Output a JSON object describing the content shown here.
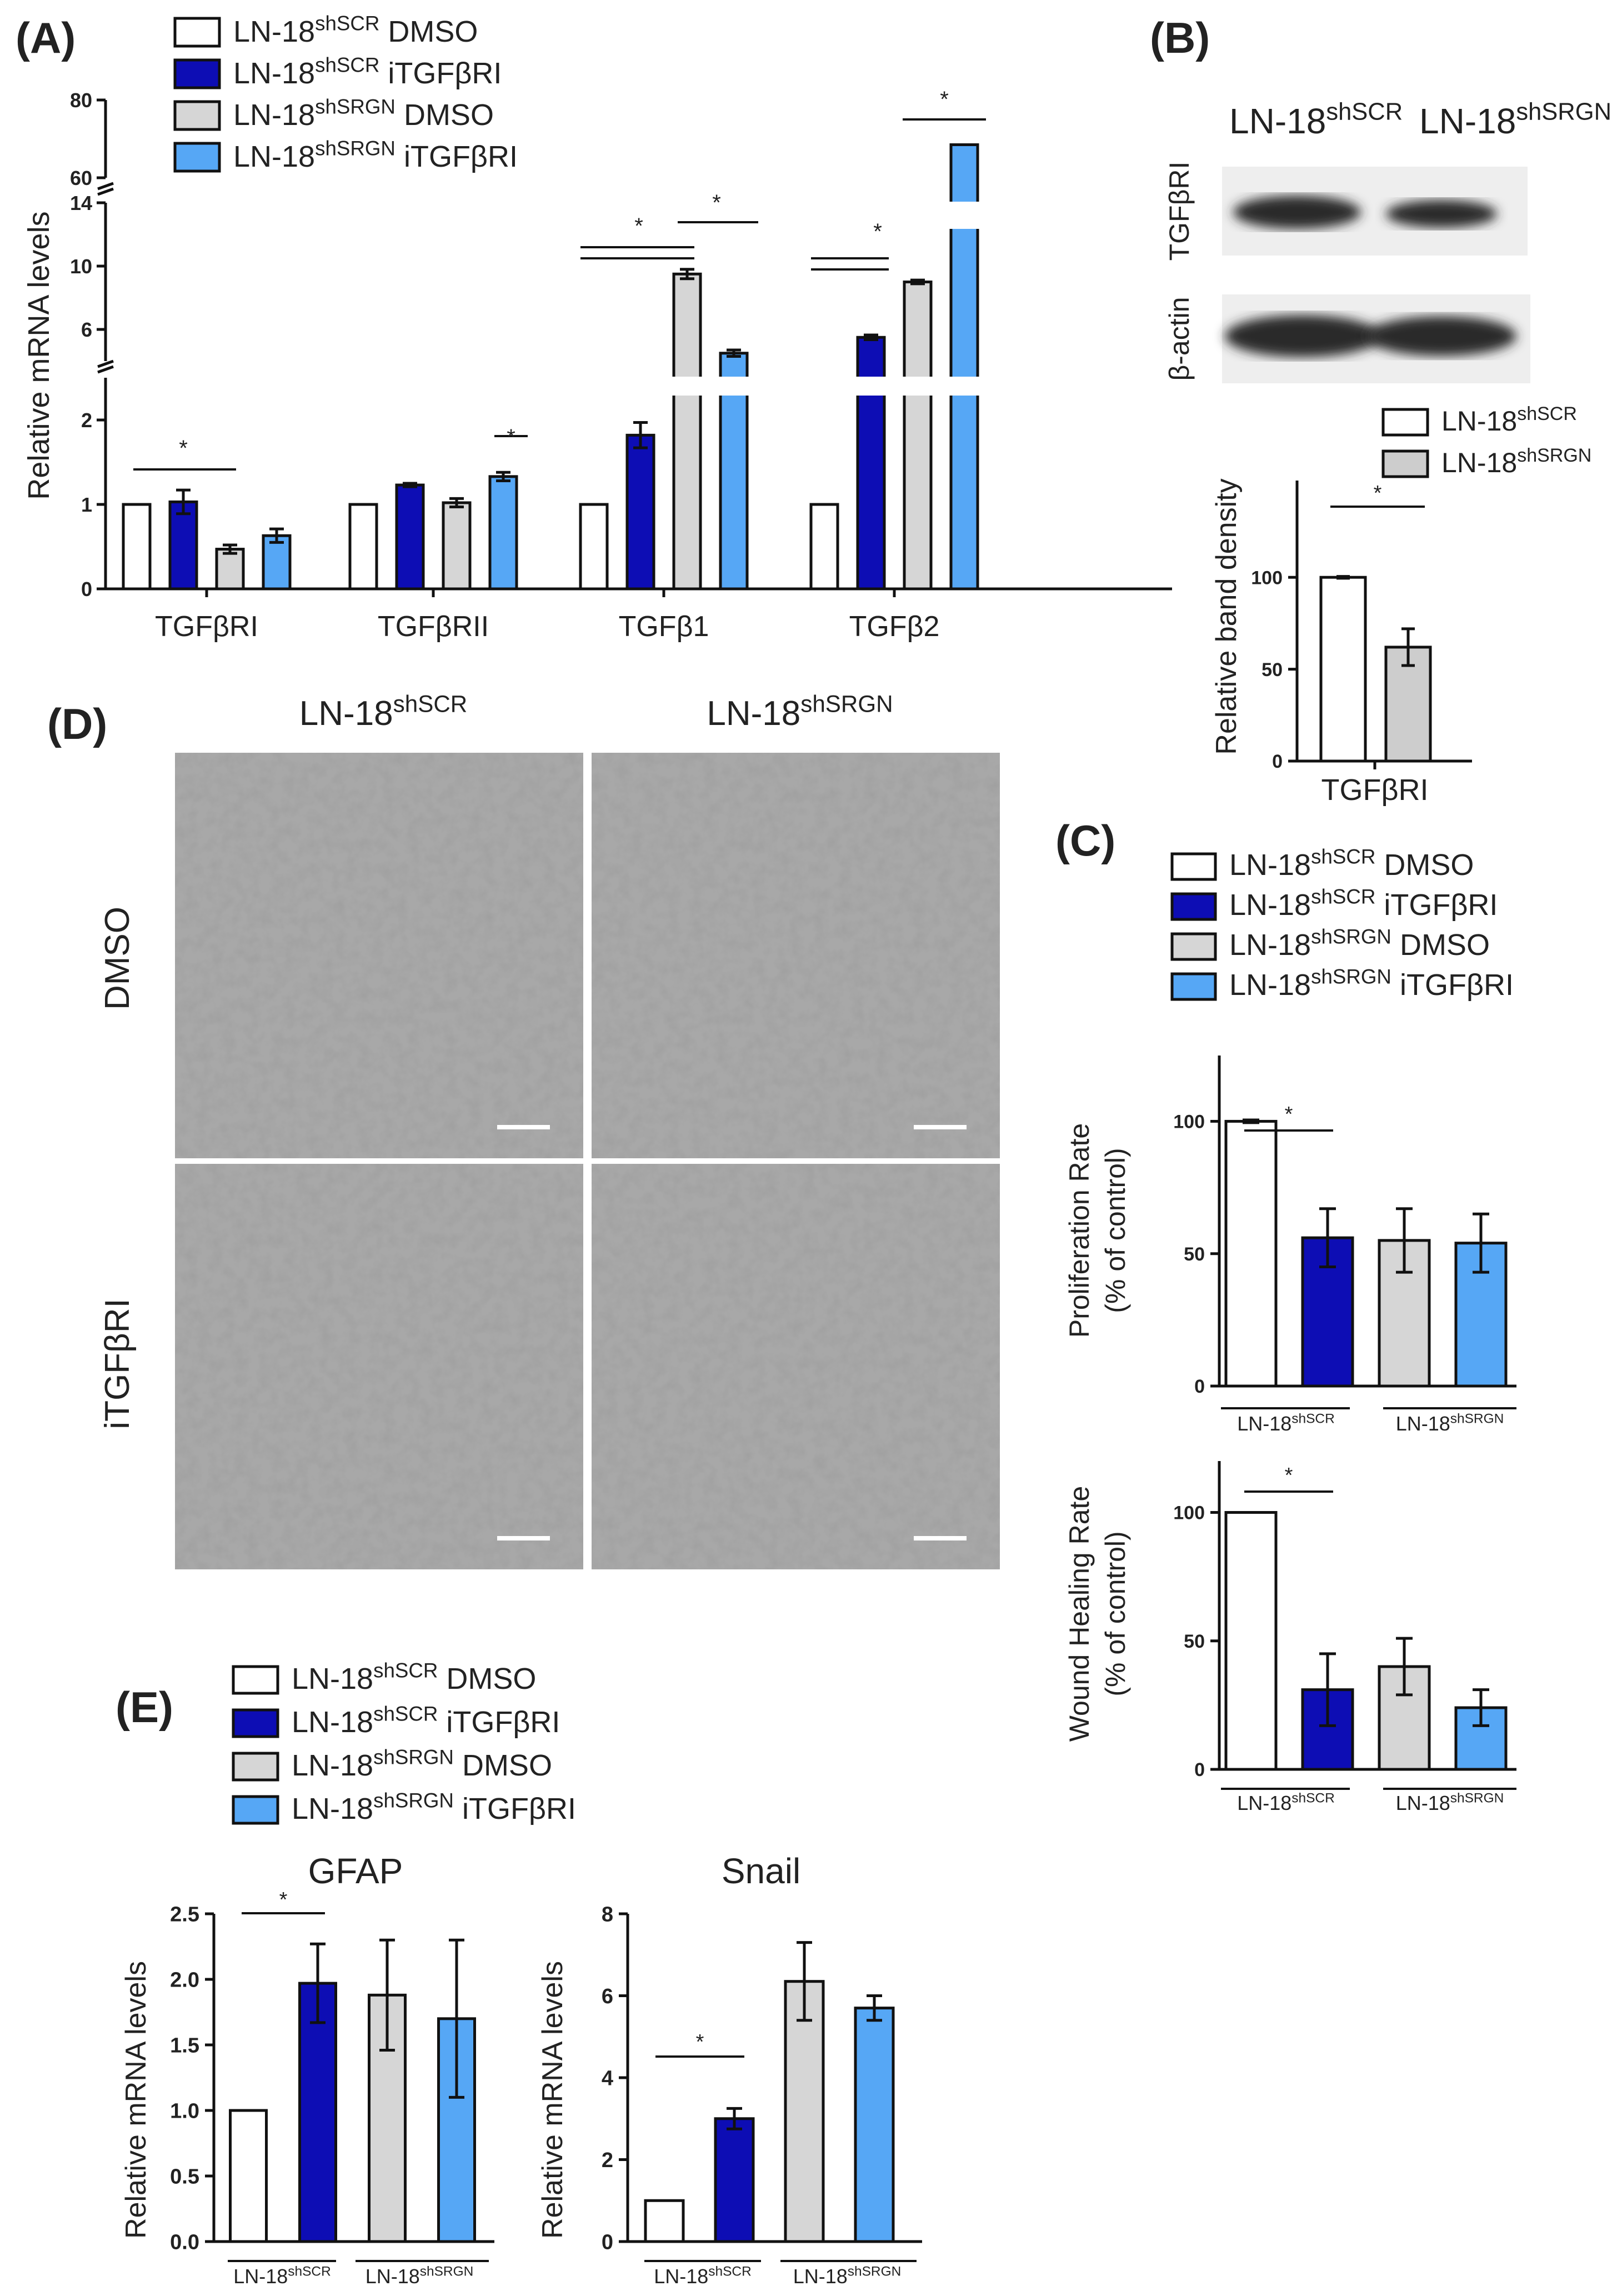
{
  "colors": {
    "white": "#ffffff",
    "dark_blue": "#0d0db4",
    "light_gray": "#d6d6d6",
    "light_blue": "#56a7f5",
    "gray_b": "#cdcdcd",
    "micro_bg": "#a8a8a8",
    "blot_bg": "#eeeeee",
    "band": "#2a2a2a"
  },
  "panels": {
    "A": "(A)",
    "B": "(B)",
    "C": "(C)",
    "D": "(D)",
    "E": "(E)"
  },
  "legend4": [
    {
      "base": "LN-18",
      "sup": "shSCR",
      "tail": " DMSO",
      "color": "white"
    },
    {
      "base": "LN-18",
      "sup": "shSCR",
      "tail": " iTGFβRI",
      "color": "dark_blue"
    },
    {
      "base": "LN-18",
      "sup": "shSRGN",
      "tail": " DMSO",
      "color": "light_gray"
    },
    {
      "base": "LN-18",
      "sup": "shSRGN",
      "tail": " iTGFβRI",
      "color": "light_blue"
    }
  ],
  "legendB": [
    {
      "base": "LN-18",
      "sup": "shSCR",
      "color": "white"
    },
    {
      "base": "LN-18",
      "sup": "shSRGN",
      "color": "gray_b"
    }
  ],
  "group_labels": [
    {
      "base": "LN-18",
      "sup": "shSCR"
    },
    {
      "base": "LN-18",
      "sup": "shSRGN"
    }
  ],
  "blot": {
    "lanes": [
      {
        "base": "LN-18",
        "sup": "shSCR"
      },
      {
        "base": "LN-18",
        "sup": "shSRGN"
      }
    ],
    "rows": [
      "TGFβRI",
      "β-actin"
    ]
  },
  "micro": {
    "columns": [
      {
        "base": "LN-18",
        "sup": "shSCR"
      },
      {
        "base": "LN-18",
        "sup": "shSRGN"
      }
    ],
    "rows": [
      "DMSO",
      "iTGFβRI"
    ]
  },
  "chart_data": [
    {
      "id": "A",
      "type": "bar",
      "ylabel": "Relative mRNA levels",
      "categories": [
        "TGFβRI",
        "TGFβRII",
        "TGFβ1",
        "TGFβ2"
      ],
      "series": [
        {
          "name": "LN-18shSCR DMSO",
          "values": [
            1,
            1,
            1,
            1
          ],
          "errors": [
            0,
            0,
            0,
            0
          ]
        },
        {
          "name": "LN-18shSCR iTGFβRI",
          "values": [
            1.03,
            1.23,
            1.82,
            5.5
          ],
          "errors": [
            0.14,
            0.02,
            0.15,
            0.15
          ]
        },
        {
          "name": "LN-18shSRGN DMSO",
          "values": [
            0.47,
            1.02,
            9.5,
            9.0
          ],
          "errors": [
            0.05,
            0.05,
            0.3,
            0.12
          ]
        },
        {
          "name": "LN-18shSRGN iTGFβRI",
          "values": [
            0.63,
            1.33,
            4.5,
            68.5
          ],
          "errors": [
            0.08,
            0.05,
            0.2,
            0
          ]
        }
      ],
      "axis_segments": [
        {
          "range": [
            0,
            2.5
          ],
          "ticks": [
            "0",
            "1",
            "2"
          ]
        },
        {
          "range": [
            4,
            14
          ],
          "ticks": [
            "6",
            "10",
            "14"
          ]
        },
        {
          "range": [
            60,
            80
          ],
          "ticks": [
            "60",
            "80"
          ]
        }
      ],
      "significance": [
        "*",
        "*",
        "*",
        "*",
        "*",
        "*"
      ]
    },
    {
      "id": "B",
      "type": "bar",
      "ylabel": "Relative band density",
      "categories": [
        "TGFβRI"
      ],
      "series": [
        {
          "name": "LN-18shSCR",
          "values": [
            100
          ],
          "errors": [
            0.5
          ]
        },
        {
          "name": "LN-18shSRGN",
          "values": [
            62
          ],
          "errors": [
            10
          ]
        }
      ],
      "ylim": [
        0,
        130
      ],
      "yticks": [
        "0",
        "50",
        "100"
      ],
      "significance": [
        "*"
      ]
    },
    {
      "id": "C-proliferation",
      "type": "bar",
      "ylabel_lines": [
        "Proliferation Rate",
        "(% of control)"
      ],
      "series": [
        {
          "name": "LN-18shSCR DMSO",
          "values": [
            100
          ],
          "errors": [
            0.5
          ]
        },
        {
          "name": "LN-18shSCR iTGFβRI",
          "values": [
            56
          ],
          "errors": [
            11
          ]
        },
        {
          "name": "LN-18shSRGN DMSO",
          "values": [
            55
          ],
          "errors": [
            12
          ]
        },
        {
          "name": "LN-18shSRGN iTGFβRI",
          "values": [
            54
          ],
          "errors": [
            11
          ]
        }
      ],
      "ylim": [
        0,
        128
      ],
      "yticks": [
        "0",
        "50",
        "100"
      ],
      "significance": [
        "*"
      ]
    },
    {
      "id": "C-wound",
      "type": "bar",
      "ylabel_lines": [
        "Wound Healing Rate",
        "(% of control)"
      ],
      "series": [
        {
          "name": "LN-18shSCR DMSO",
          "values": [
            100
          ],
          "errors": [
            0
          ]
        },
        {
          "name": "LN-18shSCR iTGFβRI",
          "values": [
            31
          ],
          "errors": [
            14
          ]
        },
        {
          "name": "LN-18shSRGN DMSO",
          "values": [
            40
          ],
          "errors": [
            11
          ]
        },
        {
          "name": "LN-18shSRGN iTGFβRI",
          "values": [
            24
          ],
          "errors": [
            7
          ]
        }
      ],
      "ylim": [
        0,
        120
      ],
      "yticks": [
        "0",
        "50",
        "100"
      ],
      "significance": [
        "*"
      ]
    },
    {
      "id": "E-GFAP",
      "type": "bar",
      "title": "GFAP",
      "ylabel": "Relative mRNA levels",
      "series": [
        {
          "name": "LN-18shSCR DMSO",
          "values": [
            1.0
          ],
          "errors": [
            0
          ]
        },
        {
          "name": "LN-18shSCR iTGFβRI",
          "values": [
            1.97
          ],
          "errors": [
            0.3
          ]
        },
        {
          "name": "LN-18shSRGN DMSO",
          "values": [
            1.88
          ],
          "errors": [
            0.42
          ]
        },
        {
          "name": "LN-18shSRGN iTGFβRI",
          "values": [
            1.7
          ],
          "errors": [
            0.6
          ]
        }
      ],
      "ylim": [
        0,
        2.5
      ],
      "yticks": [
        "0.0",
        "0.5",
        "1.0",
        "1.5",
        "2.0",
        "2.5"
      ],
      "significance": [
        "*"
      ]
    },
    {
      "id": "E-Snail",
      "type": "bar",
      "title": "Snail",
      "ylabel": "Relative mRNA levels",
      "series": [
        {
          "name": "LN-18shSCR DMSO",
          "values": [
            1.0
          ],
          "errors": [
            0
          ]
        },
        {
          "name": "LN-18shSCR iTGFβRI",
          "values": [
            3.0
          ],
          "errors": [
            0.25
          ]
        },
        {
          "name": "LN-18shSRGN DMSO",
          "values": [
            6.35
          ],
          "errors": [
            0.95
          ]
        },
        {
          "name": "LN-18shSRGN iTGFβRI",
          "values": [
            5.7
          ],
          "errors": [
            0.3
          ]
        }
      ],
      "ylim": [
        0,
        8
      ],
      "yticks": [
        "0",
        "2",
        "4",
        "6",
        "8"
      ],
      "significance": [
        "*"
      ]
    }
  ]
}
